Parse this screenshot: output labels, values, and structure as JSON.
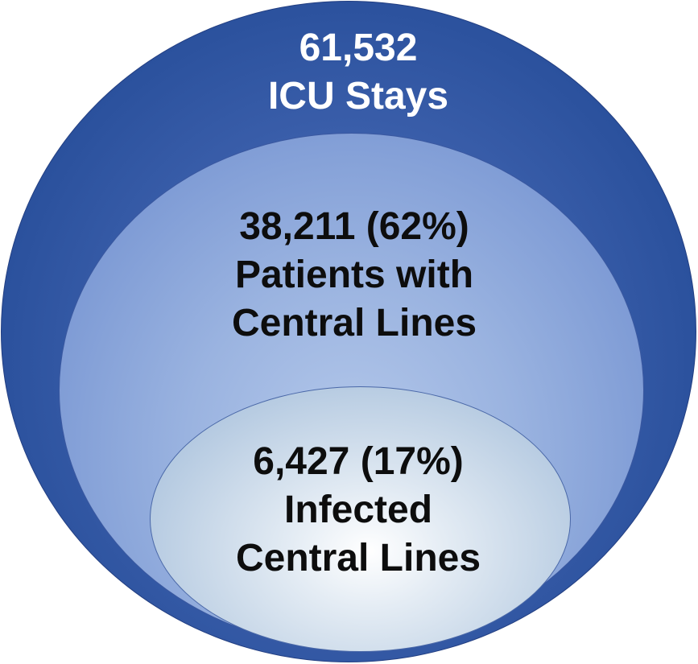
{
  "outer": {
    "count": "61,532",
    "label": "ICU Stays"
  },
  "middle": {
    "count": "38,211 (62%)",
    "label_line1": "Patients with",
    "label_line2": "Central Lines"
  },
  "inner": {
    "count": "6,427 (17%)",
    "label_line1": "Infected",
    "label_line2": "Central Lines"
  },
  "colors": {
    "outer_fill": "#264d99",
    "middle_fill": "#8aa6da",
    "inner_fill": "#e4ecf4",
    "outer_text": "#ffffff",
    "inner_text": "#0d0d0d"
  }
}
